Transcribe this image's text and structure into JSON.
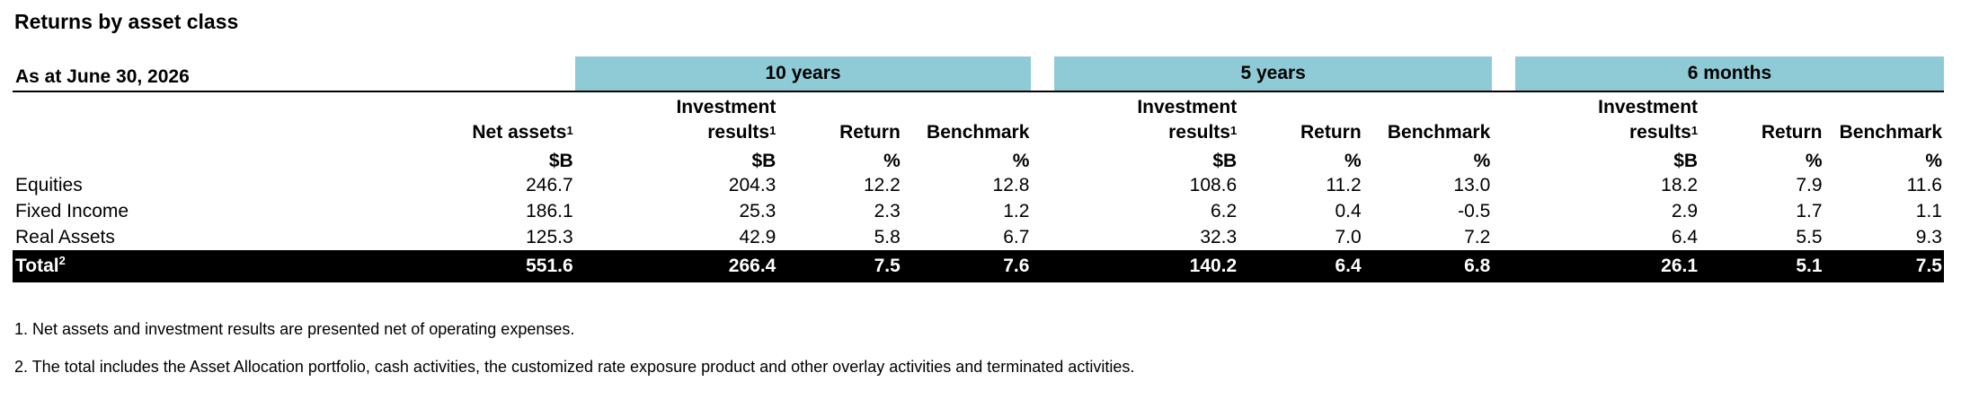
{
  "title": "Returns by asset class",
  "as_at": "As at June 30, 2026",
  "groups": [
    "10 years",
    "5 years",
    "6 months"
  ],
  "headers": {
    "net_assets": "Net assets",
    "investment_results_line1": "Investment",
    "investment_results_line2": "results",
    "return": "Return",
    "benchmark": "Benchmark",
    "footnote_1_marker": "1",
    "footnote_2_marker": "2"
  },
  "units": {
    "net_assets": "$B",
    "ir_10y": "$B",
    "ret_10y": "%",
    "bm_10y": "%",
    "ir_5y": "$B",
    "ret_5y": "%",
    "bm_5y": "%",
    "ir_6m": "$B",
    "ret_6m": "%",
    "bm_6m": "%"
  },
  "rows": [
    {
      "label": "Equities",
      "values": [
        "246.7",
        "204.3",
        "12.2",
        "12.8",
        "108.6",
        "11.2",
        "13.0",
        "18.2",
        "7.9",
        "11.6"
      ]
    },
    {
      "label": "Fixed Income",
      "values": [
        "186.1",
        "25.3",
        "2.3",
        "1.2",
        "6.2",
        "0.4",
        "-0.5",
        "2.9",
        "1.7",
        "1.1"
      ]
    },
    {
      "label": "Real Assets",
      "values": [
        "125.3",
        "42.9",
        "5.8",
        "6.7",
        "32.3",
        "7.0",
        "7.2",
        "6.4",
        "5.5",
        "9.3"
      ]
    }
  ],
  "total": {
    "label": "Total",
    "values": [
      "551.6",
      "266.4",
      "7.5",
      "7.6",
      "140.2",
      "6.4",
      "6.8",
      "26.1",
      "5.1",
      "7.5"
    ]
  },
  "footnotes": [
    "1. Net assets and investment results are presented net of operating expenses.",
    "2. The total includes the Asset Allocation portfolio, cash activities, the customized rate exposure product and other overlay activities and terminated activities."
  ],
  "colors": {
    "group_header_bg": "#8ecbd6",
    "total_bg": "#000000",
    "total_text": "#ffffff"
  }
}
